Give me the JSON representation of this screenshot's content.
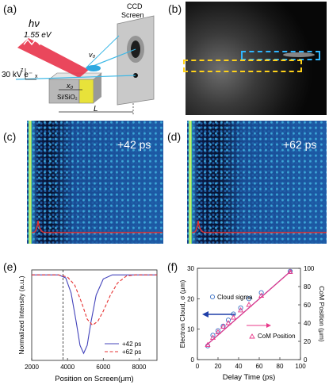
{
  "panels": {
    "a": {
      "label": "(a)",
      "photon_energy_symbol": "hν",
      "photon_energy": "1.55 eV",
      "electron_energy": "30 kV e⁻",
      "v0": "v₀",
      "x0": "x₀",
      "substrate": "Si/SiO₂",
      "screen_label_line1": "CCD",
      "screen_label_line2": "Screen",
      "distance": "L",
      "axis_z": "z",
      "axis_x": "x"
    },
    "b": {
      "label": "(b)"
    },
    "c": {
      "label": "(c)",
      "delay": "+42 ps"
    },
    "d": {
      "label": "(d)",
      "delay": "+62 ps"
    },
    "e": {
      "label": "(e)"
    },
    "f": {
      "label": "(f)"
    }
  },
  "colors": {
    "laser": "#e8334a",
    "beam": "#3cb8e6",
    "dash_blue": "#2fb6ff",
    "dash_yellow": "#ffd21a",
    "curve_red": "#e63030",
    "curve_blue": "#4444bb",
    "fit_line": "#8a2a9a",
    "pink": "#e83a8a"
  },
  "chart_data": [
    {
      "panel": "e",
      "type": "line",
      "xlabel": "Position on Screen(μm)",
      "ylabel": "Normalized Intensity (a.u.)",
      "xlim": [
        2000,
        9000
      ],
      "xticks": [
        "2000",
        "4000",
        "6000",
        "8000"
      ],
      "vline_x": 3750,
      "legend_position": "bottom-right",
      "series": [
        {
          "name": "+42 ps",
          "style": "solid",
          "color": "#4444bb",
          "x": [
            2000,
            3500,
            3900,
            4200,
            4500,
            4700,
            4900,
            5100,
            5300,
            5600,
            6000,
            6500,
            7000,
            9000
          ],
          "y": [
            1.0,
            1.0,
            0.97,
            0.82,
            0.52,
            0.3,
            0.22,
            0.3,
            0.52,
            0.8,
            0.96,
            1.0,
            1.0,
            1.0
          ]
        },
        {
          "name": "+62 ps",
          "style": "dashed",
          "color": "#e63030",
          "x": [
            2000,
            3500,
            4000,
            4400,
            4800,
            5100,
            5400,
            5700,
            6000,
            6400,
            6800,
            7300,
            7800,
            9000
          ],
          "y": [
            1.0,
            1.0,
            0.98,
            0.9,
            0.72,
            0.56,
            0.5,
            0.54,
            0.64,
            0.8,
            0.92,
            0.99,
            1.0,
            1.0
          ]
        }
      ]
    },
    {
      "panel": "f",
      "type": "scatter",
      "xlabel": "Delay Time (ps)",
      "ylabel_left": "Electron Cloud, σ (μm)",
      "ylabel_right": "CoM Position (μm)",
      "xlim": [
        0,
        100
      ],
      "ylim_left": [
        0,
        30
      ],
      "ylim_right": [
        0,
        100
      ],
      "xticks": [
        "0",
        "20",
        "40",
        "60",
        "80",
        "100"
      ],
      "yticks_left": [
        "0",
        "10",
        "20",
        "30"
      ],
      "yticks_right": [
        "0",
        "20",
        "40",
        "60",
        "80",
        "100"
      ],
      "annotations": {
        "cloud": "Cloud sigma",
        "com": "CoM Position"
      },
      "series": [
        {
          "name": "Cloud sigma",
          "marker": "circle",
          "color": "#3a6fc4",
          "axis": "left",
          "x": [
            10,
            15,
            20,
            25,
            30,
            35,
            42,
            50,
            62,
            90
          ],
          "y": [
            4.5,
            8,
            9.5,
            11,
            13,
            15,
            17,
            20,
            22,
            29
          ]
        },
        {
          "name": "CoM Position",
          "marker": "triangle",
          "color": "#e83a8a",
          "axis": "right",
          "x": [
            10,
            15,
            20,
            25,
            30,
            35,
            42,
            50,
            62,
            90
          ],
          "y": [
            16,
            24,
            30,
            36,
            40,
            46,
            54,
            60,
            70,
            96
          ]
        }
      ]
    }
  ]
}
